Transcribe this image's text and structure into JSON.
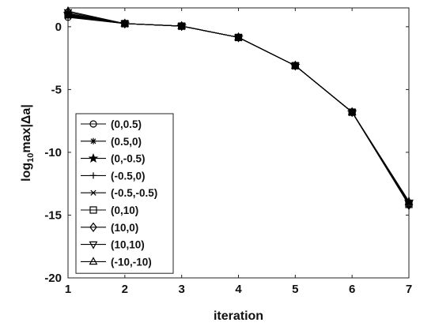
{
  "chart_data": {
    "type": "line",
    "xlabel": "iteration",
    "ylabel_main": "log",
    "ylabel_sub": "10",
    "ylabel_rest": "max|Δa|",
    "xlim": [
      1,
      7
    ],
    "ylim": [
      -20,
      1.5
    ],
    "xticks": [
      1,
      2,
      3,
      4,
      5,
      6,
      7
    ],
    "yticks": [
      0,
      -5,
      -10,
      -15,
      -20
    ],
    "grid": false,
    "legend_position": "middle-left",
    "x": [
      1,
      2,
      3,
      4,
      5,
      6,
      7
    ],
    "series": [
      {
        "name": "(0,0.5)",
        "marker": "circle",
        "values": [
          0.75,
          0.25,
          0.05,
          -0.85,
          -3.1,
          -6.8,
          -14.1
        ]
      },
      {
        "name": "(0.5,0)",
        "marker": "asterisk",
        "values": [
          0.9,
          0.25,
          0.05,
          -0.85,
          -3.1,
          -6.8,
          -14.0
        ]
      },
      {
        "name": "(0,-0.5)",
        "marker": "star",
        "values": [
          1.05,
          0.25,
          0.05,
          -0.85,
          -3.1,
          -6.8,
          -13.9
        ]
      },
      {
        "name": "(-0.5,0)",
        "marker": "plus",
        "values": [
          0.8,
          0.25,
          0.05,
          -0.85,
          -3.1,
          -6.8,
          -14.05
        ]
      },
      {
        "name": "(-0.5,-0.5)",
        "marker": "x",
        "values": [
          0.85,
          0.25,
          0.05,
          -0.85,
          -3.1,
          -6.8,
          -14.0
        ]
      },
      {
        "name": "(0,10)",
        "marker": "square",
        "values": [
          0.95,
          0.25,
          0.05,
          -0.85,
          -3.1,
          -6.8,
          -14.15
        ]
      },
      {
        "name": "(10,0)",
        "marker": "diamond",
        "values": [
          1.0,
          0.25,
          0.05,
          -0.85,
          -3.1,
          -6.8,
          -14.2
        ]
      },
      {
        "name": "(10,10)",
        "marker": "triangle-down",
        "values": [
          1.15,
          0.25,
          0.05,
          -0.85,
          -3.1,
          -6.8,
          -14.1
        ]
      },
      {
        "name": "(-10,-10)",
        "marker": "triangle-up",
        "values": [
          1.25,
          0.25,
          0.05,
          -0.85,
          -3.1,
          -6.8,
          -13.95
        ]
      }
    ]
  }
}
